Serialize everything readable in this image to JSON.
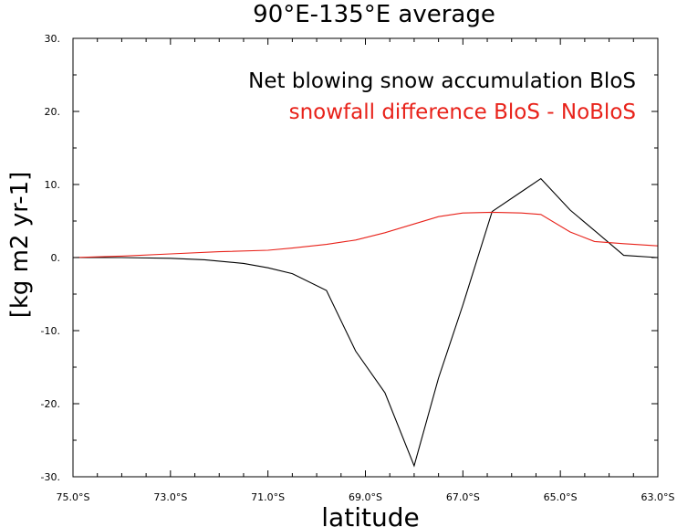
{
  "chart_data": {
    "type": "line",
    "title": "90°E-135°E average",
    "xlabel": "latitude",
    "ylabel": "[kg m2 yr-1]",
    "xlim": [
      -75,
      -63
    ],
    "ylim": [
      -30,
      30
    ],
    "x_ticks": [
      {
        "value": -75,
        "label": "75.0°S"
      },
      {
        "value": -73,
        "label": "73.0°S"
      },
      {
        "value": -71,
        "label": "71.0°S"
      },
      {
        "value": -69,
        "label": "69.0°S"
      },
      {
        "value": -67,
        "label": "67.0°S"
      },
      {
        "value": -65,
        "label": "65.0°S"
      },
      {
        "value": -63,
        "label": "63.0°S"
      }
    ],
    "x_minor_ticks": [
      -74.5,
      -74,
      -73.5,
      -72.5,
      -72,
      -71.5,
      -70.5,
      -70,
      -69.5,
      -68.5,
      -68,
      -67.5,
      -66.5,
      -66,
      -65.5,
      -64.5,
      -64,
      -63.5
    ],
    "y_ticks": [
      {
        "value": -30,
        "label": "-30."
      },
      {
        "value": -20,
        "label": "-20."
      },
      {
        "value": -10,
        "label": "-10."
      },
      {
        "value": 0,
        "label": "0."
      },
      {
        "value": 10,
        "label": "10."
      },
      {
        "value": 20,
        "label": "20."
      },
      {
        "value": 30,
        "label": "30."
      }
    ],
    "y_minor_ticks": [
      -25,
      -15,
      -5,
      5,
      15,
      25
    ],
    "legend_placement": "top-right",
    "grid": false,
    "series": [
      {
        "name": "Net blowing snow accumulation BloS",
        "color": "#000000",
        "x": [
          -75,
          -74,
          -73,
          -72.3,
          -71.5,
          -71.0,
          -70.5,
          -69.8,
          -69.2,
          -68.6,
          -68.0,
          -67.5,
          -67.0,
          -66.4,
          -65.8,
          -65.4,
          -64.8,
          -64.3,
          -63.7,
          -63.0
        ],
        "y": [
          0,
          0,
          -0.1,
          -0.3,
          -0.8,
          -1.4,
          -2.2,
          -4.5,
          -12.8,
          -18.5,
          -28.5,
          -16.5,
          -6.5,
          6.3,
          9.0,
          10.8,
          6.5,
          3.7,
          0.3,
          0.0
        ]
      },
      {
        "name": "snowfall difference BloS - NoBloS",
        "color": "#e8221a",
        "x": [
          -75,
          -74,
          -73,
          -72,
          -71,
          -70.5,
          -69.8,
          -69.2,
          -68.6,
          -68.0,
          -67.5,
          -67.0,
          -66.4,
          -65.8,
          -65.4,
          -64.8,
          -64.3,
          -63.7,
          -63.0
        ],
        "y": [
          0,
          0.2,
          0.5,
          0.8,
          1.0,
          1.3,
          1.8,
          2.4,
          3.4,
          4.6,
          5.6,
          6.1,
          6.2,
          6.1,
          5.9,
          3.5,
          2.2,
          1.9,
          1.6
        ]
      }
    ]
  }
}
